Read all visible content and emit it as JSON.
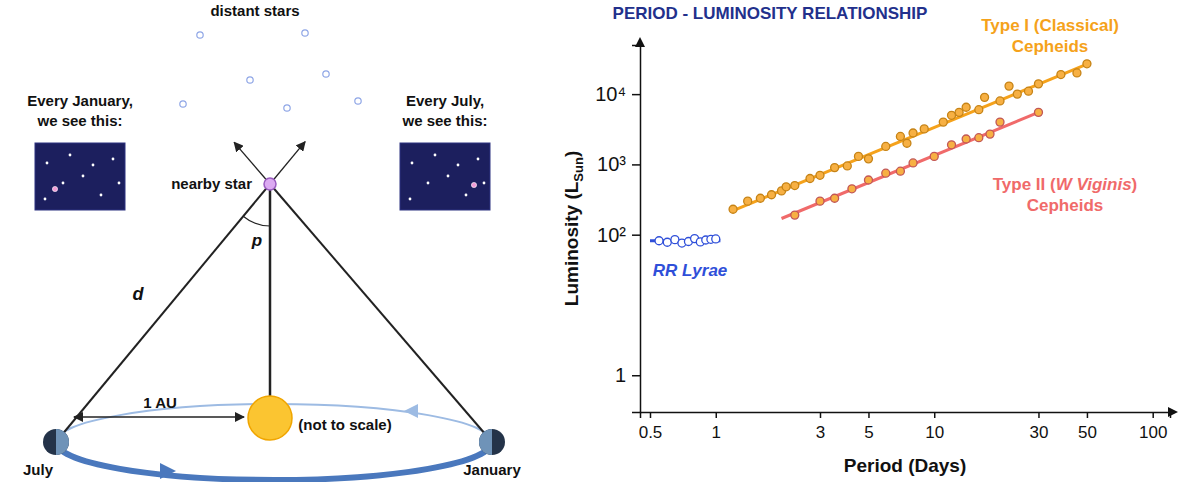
{
  "diagram": {
    "distant_stars_label": "distant stars",
    "january_caption": [
      "Every January,",
      "we see this:"
    ],
    "july_caption": [
      "Every July,",
      "we see this:"
    ],
    "nearby_star_label": "nearby star",
    "parallax_label": "p",
    "distance_label": "d",
    "distance_unit_label": "1 AU",
    "scale_note": "(not to scale)",
    "earth_labels": {
      "july": "July",
      "january": "January"
    }
  },
  "chart_data": {
    "type": "scatter",
    "title": "PERIOD - LUMINOSITY RELATIONSHIP",
    "xlabel": "Period (Days)",
    "ylabel": [
      "Luminosity (L",
      "Sun",
      ")"
    ],
    "log": true,
    "xlim": [
      0.45,
      120
    ],
    "ylim": [
      0.3,
      50000
    ],
    "xticks": [
      0.5,
      1,
      3,
      5,
      10,
      30,
      50,
      100
    ],
    "yticks": [
      1,
      {
        "value": 100,
        "label": "10²"
      },
      {
        "value": 1000,
        "label": "10³"
      },
      {
        "value": 10000,
        "label": "10⁴"
      }
    ],
    "series": [
      {
        "name": "Type I (Classical) Cepheids",
        "color": "#f5a21b",
        "marker": "circle",
        "x": [
          1.2,
          1.4,
          1.6,
          1.8,
          2.0,
          2.1,
          2.3,
          2.7,
          3.0,
          3.5,
          4.0,
          4.5,
          5.0,
          6.0,
          7.0,
          7.5,
          8.0,
          9.0,
          11,
          12,
          13,
          14,
          16,
          17,
          20,
          22,
          24,
          27,
          30,
          38,
          45,
          50
        ],
        "values": [
          230,
          300,
          330,
          370,
          420,
          480,
          500,
          630,
          700,
          900,
          950,
          1300,
          1200,
          1800,
          2500,
          2000,
          2800,
          3200,
          4000,
          5000,
          5500,
          6500,
          6000,
          9000,
          8000,
          13000,
          10000,
          11000,
          14000,
          19000,
          20000,
          27000
        ],
        "fit": {
          "x": [
            1.2,
            52
          ],
          "values": [
            220,
            28000
          ]
        }
      },
      {
        "name": "Type II (W Viginis) Cepheids",
        "color": "#f06a6a",
        "marker": "circle",
        "x": [
          2.3,
          3,
          3.5,
          4.2,
          5,
          6,
          7,
          8,
          10,
          12,
          14,
          16,
          18,
          20,
          30
        ],
        "values": [
          190,
          300,
          330,
          450,
          600,
          750,
          800,
          1050,
          1300,
          1900,
          2300,
          2400,
          2700,
          4000,
          5500
        ],
        "fit": {
          "x": [
            2,
            30
          ],
          "values": [
            170,
            5500
          ]
        }
      },
      {
        "name": "RR Lyrae",
        "color": "#2f4fd9",
        "marker": "open-circle",
        "x": [
          0.55,
          0.6,
          0.65,
          0.7,
          0.75,
          0.8,
          0.85,
          0.9,
          0.95,
          1.0
        ],
        "values": [
          82,
          78,
          85,
          76,
          80,
          88,
          79,
          84,
          86,
          87
        ],
        "fit": {
          "x": [
            0.5,
            1.05
          ],
          "values": [
            82,
            82
          ]
        }
      }
    ]
  }
}
